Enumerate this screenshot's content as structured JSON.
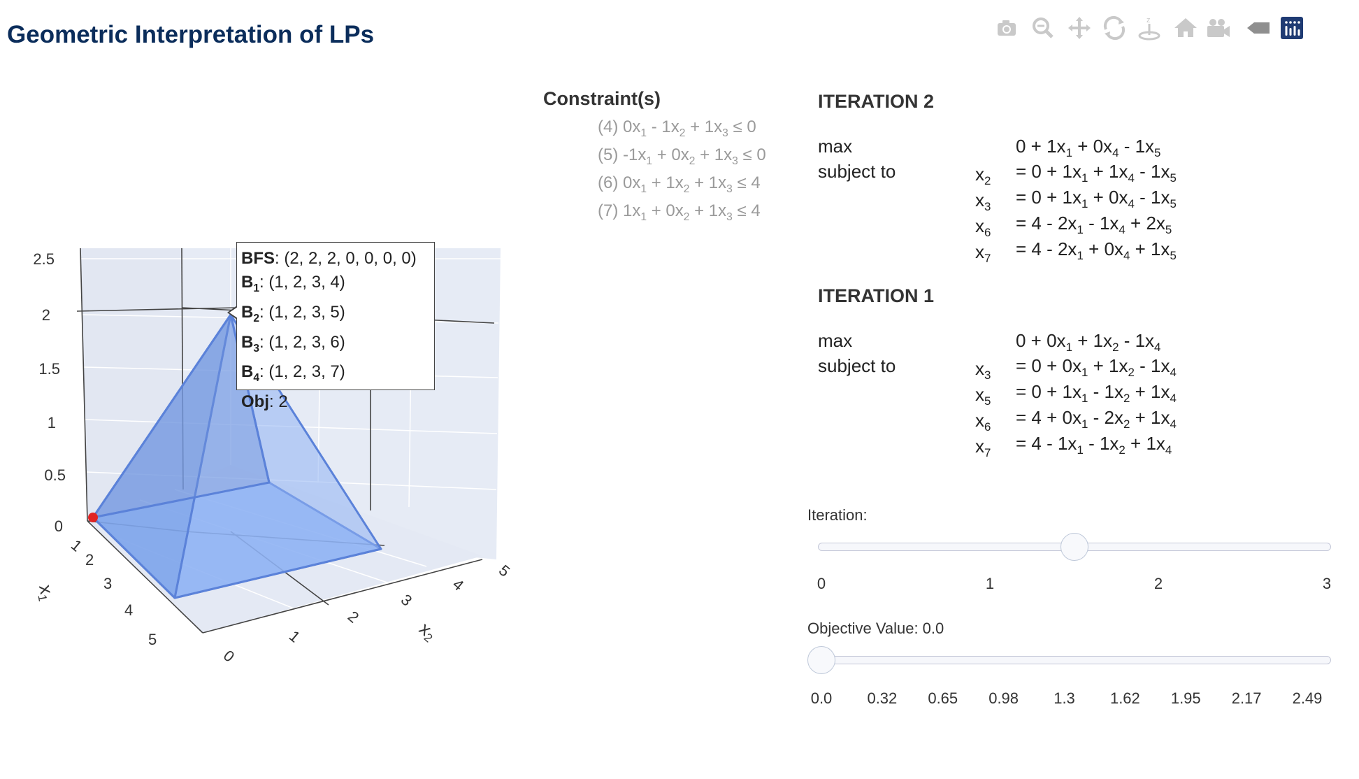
{
  "header": {
    "title": "Geometric Interpretation of LPs"
  },
  "modebar": {
    "buttons": [
      {
        "name": "camera-icon",
        "label": "Download plot as a png",
        "x": 0
      },
      {
        "name": "zoom-icon",
        "label": "Zoom",
        "x": 1
      },
      {
        "name": "pan-icon",
        "label": "Pan",
        "x": 2
      },
      {
        "name": "orbit-rotation-icon",
        "label": "Orbital rotation",
        "x": 3
      },
      {
        "name": "turntable-icon",
        "label": "Turntable rotation",
        "x": 4
      },
      {
        "name": "home-icon",
        "label": "Reset camera to default",
        "x": 5
      },
      {
        "name": "video-camera-icon",
        "label": "Reset camera to last save",
        "x": 6
      },
      {
        "name": "hover-toggle-icon",
        "label": "Toggle show closest data on hover",
        "x": 7
      },
      {
        "name": "plotly-logo-icon",
        "label": "Produced with Plotly",
        "x": 8
      }
    ]
  },
  "constraints": {
    "title": "Constraint(s)",
    "items": [
      {
        "idx": "(4)",
        "html": "0x<sub>1</sub> - 1x<sub>2</sub> + 1x<sub>3</sub> ≤ 0"
      },
      {
        "idx": "(5)",
        "html": "-1x<sub>1</sub> + 0x<sub>2</sub> + 1x<sub>3</sub> ≤ 0"
      },
      {
        "idx": "(6)",
        "html": "0x<sub>1</sub> + 1x<sub>2</sub> + 1x<sub>3</sub> ≤ 4"
      },
      {
        "idx": "(7)",
        "html": "1x<sub>1</sub> + 0x<sub>2</sub> + 1x<sub>3</sub> ≤ 4"
      }
    ]
  },
  "iterations": [
    {
      "heading": "ITERATION 2",
      "max_label": "max",
      "objective": "0 + 1x<sub>1</sub> + 0x<sub>4</sub> - 1x<sub>5</sub>",
      "subject_label": "subject to",
      "rows": [
        {
          "var": "x<sub>2</sub>",
          "expr": "= 0 + 1x<sub>1</sub> + 1x<sub>4</sub> - 1x<sub>5</sub>"
        },
        {
          "var": "x<sub>3</sub>",
          "expr": "= 0 + 1x<sub>1</sub> + 0x<sub>4</sub> - 1x<sub>5</sub>"
        },
        {
          "var": "x<sub>6</sub>",
          "expr": "= 4 - 2x<sub>1</sub> - 1x<sub>4</sub> + 2x<sub>5</sub>"
        },
        {
          "var": "x<sub>7</sub>",
          "expr": "= 4 - 2x<sub>1</sub> + 0x<sub>4</sub> + 1x<sub>5</sub>"
        }
      ]
    },
    {
      "heading": "ITERATION 1",
      "max_label": "max",
      "objective": "0 + 0x<sub>1</sub> + 1x<sub>2</sub> - 1x<sub>4</sub>",
      "subject_label": "subject to",
      "rows": [
        {
          "var": "x<sub>3</sub>",
          "expr": "= 0 + 0x<sub>1</sub> + 1x<sub>2</sub> - 1x<sub>4</sub>"
        },
        {
          "var": "x<sub>5</sub>",
          "expr": "= 0 + 1x<sub>1</sub> - 1x<sub>2</sub> + 1x<sub>4</sub>"
        },
        {
          "var": "x<sub>6</sub>",
          "expr": "= 4 + 0x<sub>1</sub> - 2x<sub>2</sub> + 1x<sub>4</sub>"
        },
        {
          "var": "x<sub>7</sub>",
          "expr": "= 4 - 1x<sub>1</sub> - 1x<sub>2</sub> + 1x<sub>4</sub>"
        }
      ]
    }
  ],
  "iteration_slider": {
    "label": "Iteration:",
    "ticks": [
      "0",
      "1",
      "2",
      "3"
    ],
    "value": 1.5,
    "min": 0,
    "max": 3
  },
  "objective_slider": {
    "label": "Objective Value: 0.0",
    "ticks": [
      "0.0",
      "0.32",
      "0.65",
      "0.98",
      "1.3",
      "1.62",
      "1.95",
      "2.17",
      "2.49"
    ],
    "value_index": 0
  },
  "tooltip": {
    "rows": [
      {
        "key": "BFS",
        "sub": "",
        "val": ": (2, 2, 2, 0, 0, 0, 0)"
      },
      {
        "key": "B",
        "sub": "1",
        "val": ": (1, 2, 3, 4)"
      },
      {
        "key": "B",
        "sub": "2",
        "val": ": (1, 2, 3, 5)"
      },
      {
        "key": "B",
        "sub": "3",
        "val": ": (1, 2, 3, 6)"
      },
      {
        "key": "B",
        "sub": "4",
        "val": ": (1, 2, 3, 7)"
      },
      {
        "key": "Obj",
        "sub": "",
        "val": ": 2"
      }
    ]
  },
  "chart_data": {
    "type": "scatter3d",
    "title": "",
    "z_ticks": [
      "0",
      "0.5",
      "1",
      "1.5",
      "2",
      "2.5"
    ],
    "x1_ticks": [
      "1",
      "2",
      "3",
      "4",
      "5"
    ],
    "x2_ticks": [
      "0",
      "1",
      "2",
      "3",
      "4",
      "5"
    ],
    "x1_label": "x1",
    "x2_label": "x2",
    "feasible_polytope_vertices": [
      [
        0,
        0,
        0
      ],
      [
        4,
        0,
        0
      ],
      [
        0,
        4,
        0
      ],
      [
        4,
        4,
        0
      ],
      [
        2,
        2,
        2
      ]
    ],
    "current_point": [
      0,
      0,
      0
    ],
    "highlight_color": "#e02424",
    "polytope_color": "#5b8ae8"
  }
}
